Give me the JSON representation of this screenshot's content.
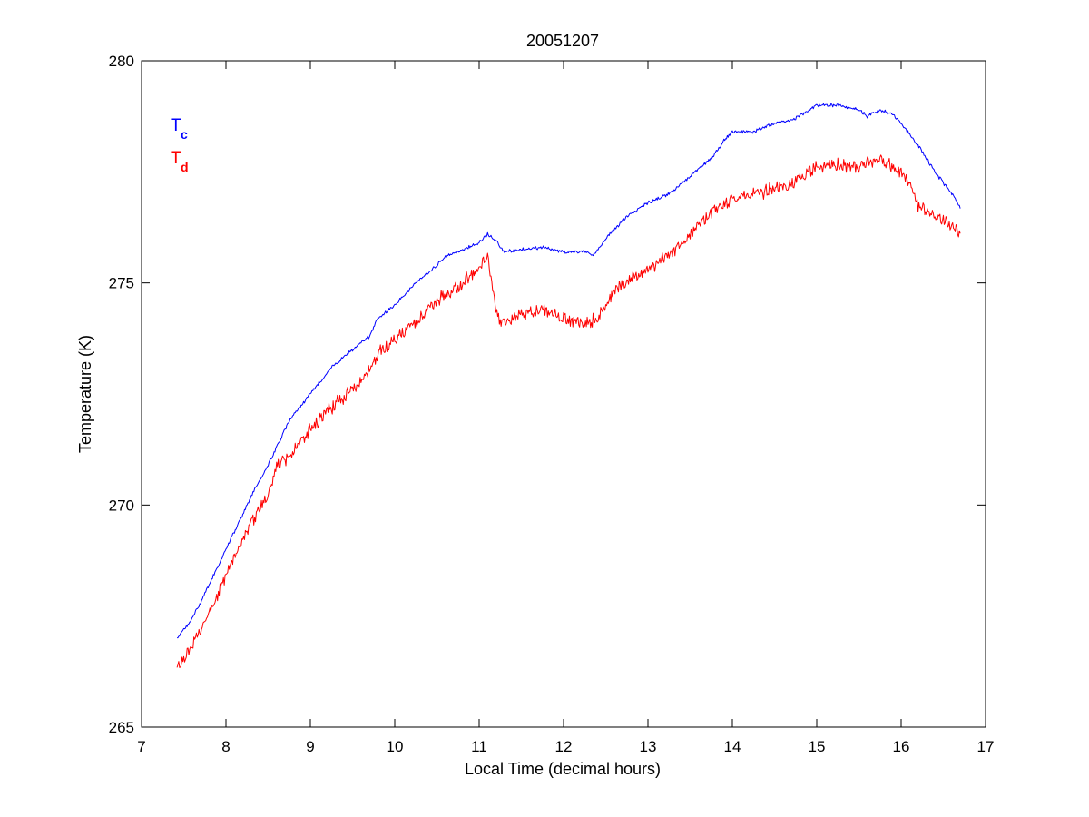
{
  "chart_data": {
    "type": "line",
    "title": "20051207",
    "xlabel": "Local Time (decimal hours)",
    "ylabel": "Temperature (K)",
    "xlim": [
      7,
      17
    ],
    "ylim": [
      265,
      280
    ],
    "xticks": [
      "7",
      "8",
      "9",
      "10",
      "11",
      "12",
      "13",
      "14",
      "15",
      "16",
      "17"
    ],
    "yticks": [
      "265",
      "270",
      "275",
      "280"
    ],
    "grid": false,
    "legend_position": "top-left",
    "series": [
      {
        "name_main": "T",
        "name_sub": "c",
        "color": "#0000ff",
        "noise": 0.03,
        "x": [
          7.42,
          7.55,
          7.7,
          7.85,
          8.0,
          8.15,
          8.3,
          8.5,
          8.65,
          8.75,
          9.0,
          9.25,
          9.5,
          9.7,
          9.8,
          10.0,
          10.25,
          10.5,
          10.6,
          10.75,
          11.0,
          11.1,
          11.2,
          11.3,
          11.5,
          11.75,
          12.0,
          12.25,
          12.35,
          12.5,
          12.75,
          13.0,
          13.25,
          13.5,
          13.75,
          13.9,
          14.0,
          14.25,
          14.5,
          14.75,
          15.0,
          15.25,
          15.5,
          15.6,
          15.75,
          15.9,
          16.0,
          16.2,
          16.4,
          16.6,
          16.7
        ],
        "y": [
          267.0,
          267.3,
          267.8,
          268.4,
          269.0,
          269.6,
          270.2,
          270.9,
          271.5,
          271.9,
          272.5,
          273.1,
          273.5,
          273.8,
          274.2,
          274.5,
          275.0,
          275.4,
          275.6,
          275.7,
          275.9,
          276.1,
          275.95,
          275.7,
          275.75,
          275.8,
          275.7,
          275.7,
          275.6,
          276.0,
          276.5,
          276.8,
          277.0,
          277.4,
          277.8,
          278.2,
          278.4,
          278.4,
          278.6,
          278.7,
          279.0,
          279.0,
          278.9,
          278.75,
          278.9,
          278.8,
          278.6,
          278.1,
          277.5,
          277.0,
          276.7
        ]
      },
      {
        "name_main": "T",
        "name_sub": "d",
        "color": "#ff0000",
        "noise": 0.12,
        "x": [
          7.42,
          7.55,
          7.7,
          7.85,
          8.0,
          8.15,
          8.3,
          8.5,
          8.6,
          8.75,
          9.0,
          9.25,
          9.5,
          9.7,
          9.8,
          10.0,
          10.25,
          10.5,
          10.75,
          10.9,
          11.0,
          11.1,
          11.2,
          11.25,
          11.5,
          11.75,
          12.0,
          12.25,
          12.4,
          12.6,
          12.8,
          13.0,
          13.25,
          13.5,
          13.75,
          13.9,
          14.0,
          14.25,
          14.5,
          14.75,
          15.0,
          15.25,
          15.5,
          15.6,
          15.75,
          15.9,
          16.0,
          16.1,
          16.2,
          16.4,
          16.6,
          16.7
        ],
        "y": [
          266.3,
          266.7,
          267.2,
          267.8,
          268.4,
          269.0,
          269.6,
          270.2,
          270.9,
          271.1,
          271.7,
          272.2,
          272.6,
          273.0,
          273.4,
          273.7,
          274.1,
          274.6,
          274.9,
          275.2,
          275.4,
          275.6,
          274.4,
          274.1,
          274.3,
          274.4,
          274.2,
          274.1,
          274.2,
          274.8,
          275.1,
          275.3,
          275.6,
          276.1,
          276.6,
          276.8,
          276.9,
          277.0,
          277.1,
          277.3,
          277.6,
          277.65,
          277.6,
          277.7,
          277.8,
          277.6,
          277.5,
          277.2,
          276.7,
          276.5,
          276.3,
          276.1
        ]
      }
    ]
  }
}
